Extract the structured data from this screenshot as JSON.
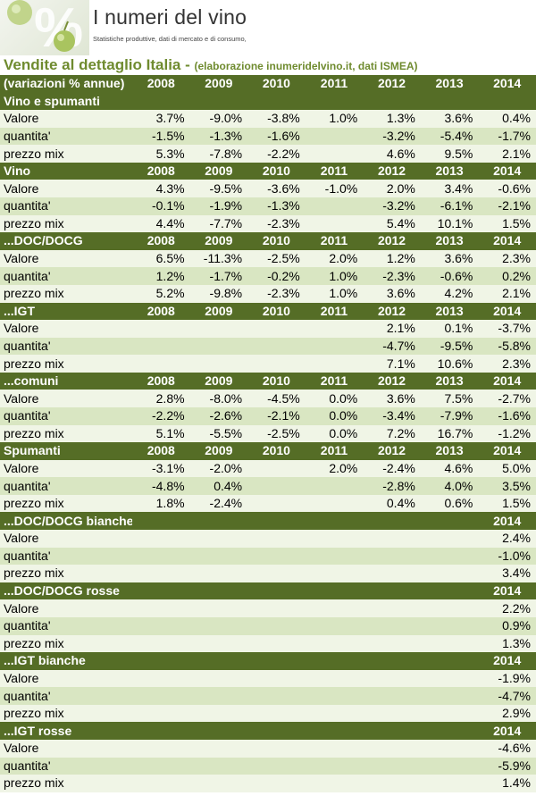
{
  "header": {
    "brand_title": "I numeri del vino",
    "brand_subtitle": "Statistiche produttive, dati di mercato e di consumo,",
    "logo_icons": [
      "percent-sign",
      "grape-icon"
    ]
  },
  "title": {
    "main": "Vendite al dettaglio Italia - ",
    "sub": "(elaborazione inumeridelvino.it, dati ISMEA)"
  },
  "colors": {
    "header_row_bg": "#556d26",
    "row_light": "#f0f5e6",
    "row_dark": "#d9e6c2",
    "title_green": "#6f8b2f"
  },
  "rows": [
    {
      "type": "hdr",
      "cells": [
        "(variazioni % annue)",
        "2008",
        "2009",
        "2010",
        "2011",
        "2012",
        "2013",
        "2014"
      ]
    },
    {
      "type": "hdr",
      "cells": [
        "Vino e spumanti",
        "",
        "",
        "",
        "",
        "",
        "",
        ""
      ]
    },
    {
      "type": "data",
      "cells": [
        "Valore",
        "3.7%",
        "-9.0%",
        "-3.8%",
        "1.0%",
        "1.3%",
        "3.6%",
        "0.4%"
      ]
    },
    {
      "type": "data",
      "cells": [
        "quantita'",
        "-1.5%",
        "-1.3%",
        "-1.6%",
        "",
        "-3.2%",
        "-5.4%",
        "-1.7%"
      ]
    },
    {
      "type": "data",
      "cells": [
        "prezzo mix",
        "5.3%",
        "-7.8%",
        "-2.2%",
        "",
        "4.6%",
        "9.5%",
        "2.1%"
      ]
    },
    {
      "type": "hdr",
      "cells": [
        "Vino",
        "2008",
        "2009",
        "2010",
        "2011",
        "2012",
        "2013",
        "2014"
      ]
    },
    {
      "type": "data",
      "cells": [
        "Valore",
        "4.3%",
        "-9.5%",
        "-3.6%",
        "-1.0%",
        "2.0%",
        "3.4%",
        "-0.6%"
      ]
    },
    {
      "type": "data",
      "cells": [
        "quantita'",
        "-0.1%",
        "-1.9%",
        "-1.3%",
        "",
        "-3.2%",
        "-6.1%",
        "-2.1%"
      ]
    },
    {
      "type": "data",
      "cells": [
        "prezzo mix",
        "4.4%",
        "-7.7%",
        "-2.3%",
        "",
        "5.4%",
        "10.1%",
        "1.5%"
      ]
    },
    {
      "type": "hdr",
      "cells": [
        "...DOC/DOCG",
        "2008",
        "2009",
        "2010",
        "2011",
        "2012",
        "2013",
        "2014"
      ]
    },
    {
      "type": "data",
      "cells": [
        "Valore",
        "6.5%",
        "-11.3%",
        "-2.5%",
        "2.0%",
        "1.2%",
        "3.6%",
        "2.3%"
      ]
    },
    {
      "type": "data",
      "cells": [
        "quantita'",
        "1.2%",
        "-1.7%",
        "-0.2%",
        "1.0%",
        "-2.3%",
        "-0.6%",
        "0.2%"
      ]
    },
    {
      "type": "data",
      "cells": [
        "prezzo mix",
        "5.2%",
        "-9.8%",
        "-2.3%",
        "1.0%",
        "3.6%",
        "4.2%",
        "2.1%"
      ]
    },
    {
      "type": "hdr",
      "cells": [
        "...IGT",
        "2008",
        "2009",
        "2010",
        "2011",
        "2012",
        "2013",
        "2014"
      ]
    },
    {
      "type": "data",
      "cells": [
        "Valore",
        "",
        "",
        "",
        "",
        "2.1%",
        "0.1%",
        "-3.7%"
      ]
    },
    {
      "type": "data",
      "cells": [
        "quantita'",
        "",
        "",
        "",
        "",
        "-4.7%",
        "-9.5%",
        "-5.8%"
      ]
    },
    {
      "type": "data",
      "cells": [
        "prezzo mix",
        "",
        "",
        "",
        "",
        "7.1%",
        "10.6%",
        "2.3%"
      ]
    },
    {
      "type": "hdr",
      "cells": [
        "...comuni",
        "2008",
        "2009",
        "2010",
        "2011",
        "2012",
        "2013",
        "2014"
      ]
    },
    {
      "type": "data",
      "cells": [
        "Valore",
        "2.8%",
        "-8.0%",
        "-4.5%",
        "0.0%",
        "3.6%",
        "7.5%",
        "-2.7%"
      ]
    },
    {
      "type": "data",
      "cells": [
        "quantita'",
        "-2.2%",
        "-2.6%",
        "-2.1%",
        "0.0%",
        "-3.4%",
        "-7.9%",
        "-1.6%"
      ]
    },
    {
      "type": "data",
      "cells": [
        "prezzo mix",
        "5.1%",
        "-5.5%",
        "-2.5%",
        "0.0%",
        "7.2%",
        "16.7%",
        "-1.2%"
      ]
    },
    {
      "type": "hdr",
      "cells": [
        "Spumanti",
        "2008",
        "2009",
        "2010",
        "2011",
        "2012",
        "2013",
        "2014"
      ]
    },
    {
      "type": "data",
      "cells": [
        "Valore",
        "-3.1%",
        "-2.0%",
        "",
        "2.0%",
        "-2.4%",
        "4.6%",
        "5.0%"
      ]
    },
    {
      "type": "data",
      "cells": [
        "quantita'",
        "-4.8%",
        "0.4%",
        "",
        "",
        "-2.8%",
        "4.0%",
        "3.5%"
      ]
    },
    {
      "type": "data",
      "cells": [
        "prezzo mix",
        "1.8%",
        "-2.4%",
        "",
        "",
        "0.4%",
        "0.6%",
        "1.5%"
      ]
    },
    {
      "type": "hdr",
      "cells": [
        "...DOC/DOCG bianche",
        "",
        "",
        "",
        "",
        "",
        "",
        "2014"
      ]
    },
    {
      "type": "data",
      "cells": [
        "Valore",
        "",
        "",
        "",
        "",
        "",
        "",
        "2.4%"
      ]
    },
    {
      "type": "data",
      "cells": [
        "quantita'",
        "",
        "",
        "",
        "",
        "",
        "",
        "-1.0%"
      ]
    },
    {
      "type": "data",
      "cells": [
        "prezzo mix",
        "",
        "",
        "",
        "",
        "",
        "",
        "3.4%"
      ]
    },
    {
      "type": "hdr",
      "cells": [
        "...DOC/DOCG rosse",
        "",
        "",
        "",
        "",
        "",
        "",
        "2014"
      ]
    },
    {
      "type": "data",
      "cells": [
        "Valore",
        "",
        "",
        "",
        "",
        "",
        "",
        "2.2%"
      ]
    },
    {
      "type": "data",
      "cells": [
        "quantita'",
        "",
        "",
        "",
        "",
        "",
        "",
        "0.9%"
      ]
    },
    {
      "type": "data",
      "cells": [
        "prezzo mix",
        "",
        "",
        "",
        "",
        "",
        "",
        "1.3%"
      ]
    },
    {
      "type": "hdr",
      "cells": [
        "...IGT bianche",
        "",
        "",
        "",
        "",
        "",
        "",
        "2014"
      ]
    },
    {
      "type": "data",
      "cells": [
        "Valore",
        "",
        "",
        "",
        "",
        "",
        "",
        "-1.9%"
      ]
    },
    {
      "type": "data",
      "cells": [
        "quantita'",
        "",
        "",
        "",
        "",
        "",
        "",
        "-4.7%"
      ]
    },
    {
      "type": "data",
      "cells": [
        "prezzo mix",
        "",
        "",
        "",
        "",
        "",
        "",
        "2.9%"
      ]
    },
    {
      "type": "hdr",
      "cells": [
        "...IGT rosse",
        "",
        "",
        "",
        "",
        "",
        "",
        "2014"
      ]
    },
    {
      "type": "data",
      "cells": [
        "Valore",
        "",
        "",
        "",
        "",
        "",
        "",
        "-4.6%"
      ]
    },
    {
      "type": "data",
      "cells": [
        "quantita'",
        "",
        "",
        "",
        "",
        "",
        "",
        "-5.9%"
      ]
    },
    {
      "type": "data",
      "cells": [
        "prezzo mix",
        "",
        "",
        "",
        "",
        "",
        "",
        "1.4%"
      ]
    }
  ]
}
